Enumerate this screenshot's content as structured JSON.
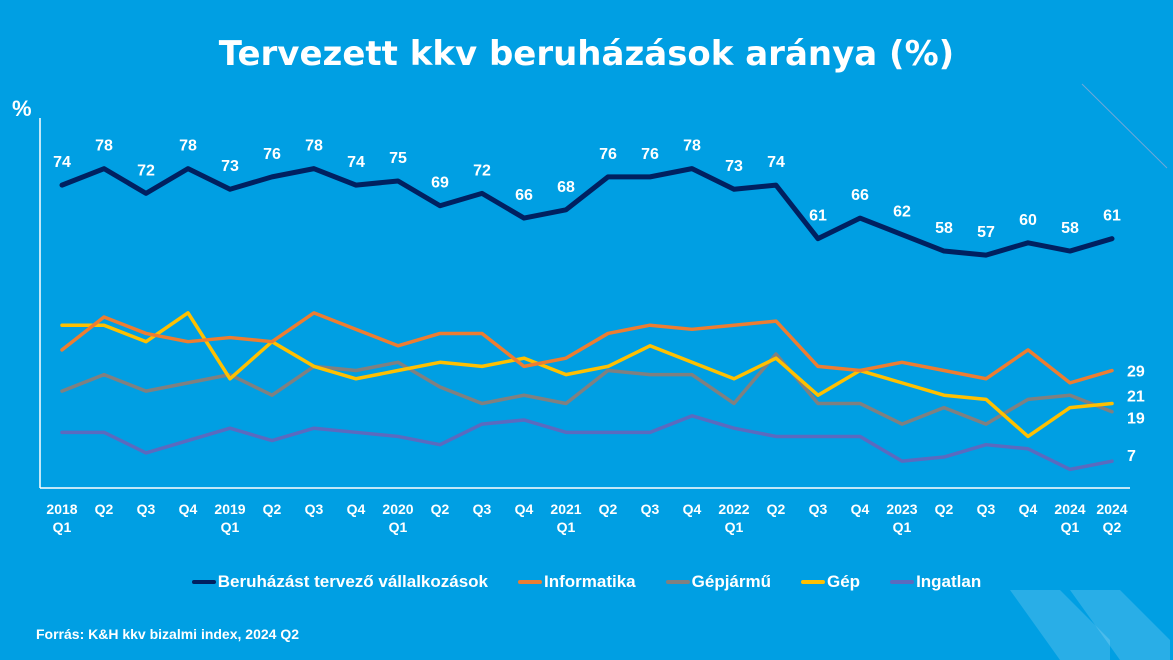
{
  "chart_data": {
    "type": "line",
    "title": "Tervezett kkv beruházások aránya (%)",
    "ylabel": "%",
    "xlabel": "",
    "ylim": [
      0,
      100
    ],
    "grid": false,
    "legend_position": "bottom",
    "categories": [
      [
        "2018",
        "Q1"
      ],
      [
        "Q2"
      ],
      [
        "Q3"
      ],
      [
        "Q4"
      ],
      [
        "2019",
        "Q1"
      ],
      [
        "Q2"
      ],
      [
        "Q3"
      ],
      [
        "Q4"
      ],
      [
        "2020",
        "Q1"
      ],
      [
        "Q2"
      ],
      [
        "Q3"
      ],
      [
        "Q4"
      ],
      [
        "2021",
        "Q1"
      ],
      [
        "Q2"
      ],
      [
        "Q3"
      ],
      [
        "Q4"
      ],
      [
        "2022",
        "Q1"
      ],
      [
        "Q2"
      ],
      [
        "Q3"
      ],
      [
        "Q4"
      ],
      [
        "2023",
        "Q1"
      ],
      [
        "Q2"
      ],
      [
        "Q3"
      ],
      [
        "Q4"
      ],
      [
        "2024",
        "Q1"
      ],
      [
        "2024",
        "Q2"
      ]
    ],
    "series": [
      {
        "name": "Beruházást tervező vállalkozások",
        "color": "#002060",
        "width": 5,
        "labels": "all",
        "values": [
          74,
          78,
          72,
          78,
          73,
          76,
          78,
          74,
          75,
          69,
          72,
          66,
          68,
          76,
          76,
          78,
          73,
          74,
          61,
          66,
          62,
          58,
          57,
          60,
          58,
          61
        ]
      },
      {
        "name": "Informatika",
        "color": "#ed7d31",
        "width": 3.5,
        "labels": "last",
        "values": [
          34,
          42,
          38,
          36,
          37,
          36,
          43,
          39,
          35,
          38,
          38,
          30,
          32,
          38,
          40,
          39,
          40,
          41,
          30,
          29,
          31,
          29,
          27,
          34,
          26,
          29
        ]
      },
      {
        "name": "Gépjármű",
        "color": "#808080",
        "width": 3.5,
        "labels": "last",
        "values": [
          24,
          28,
          24,
          26,
          28,
          23,
          30,
          29,
          31,
          25,
          21,
          23,
          21,
          29,
          28,
          28,
          21,
          33,
          21,
          21,
          16,
          20,
          16,
          22,
          23,
          19
        ]
      },
      {
        "name": "Gép",
        "color": "#ffc000",
        "width": 3.5,
        "labels": "last",
        "values": [
          40,
          40,
          36,
          43,
          27,
          36,
          30,
          27,
          29,
          31,
          30,
          32,
          28,
          30,
          35,
          31,
          27,
          32,
          23,
          29,
          26,
          23,
          22,
          13,
          20,
          21
        ]
      },
      {
        "name": "Ingatlan",
        "color": "#5b6abf",
        "width": 3.5,
        "labels": "last",
        "values": [
          14,
          14,
          9,
          12,
          15,
          12,
          15,
          14,
          13,
          11,
          16,
          17,
          14,
          14,
          14,
          18,
          15,
          13,
          13,
          13,
          7,
          8,
          11,
          10,
          5,
          7
        ]
      }
    ]
  },
  "source": "Forrás: K&H kkv bizalmi index, 2024 Q2"
}
